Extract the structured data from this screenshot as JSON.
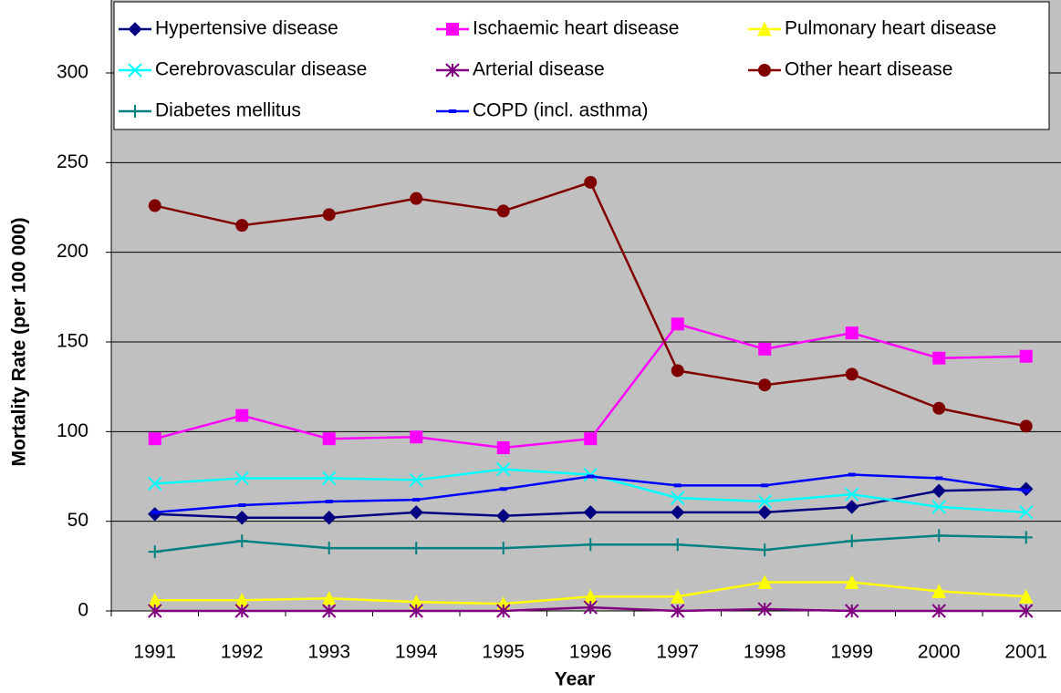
{
  "chart_data": {
    "type": "line",
    "x_label": "Year",
    "y_label": "Mortality Rate (per 100 000)",
    "categories": [
      "1991",
      "1992",
      "1993",
      "1994",
      "1995",
      "1996",
      "1997",
      "1998",
      "1999",
      "2000",
      "2001"
    ],
    "ylim": [
      0,
      300
    ],
    "yticks": [
      0,
      50,
      100,
      150,
      200,
      250,
      300
    ],
    "grid": true,
    "series": [
      {
        "name": "Hypertensive disease",
        "color": "#000080",
        "marker": "diamond",
        "values": [
          54,
          52,
          52,
          55,
          53,
          55,
          55,
          55,
          58,
          67,
          68
        ]
      },
      {
        "name": "Ischaemic heart disease",
        "color": "#ff00ff",
        "marker": "square",
        "values": [
          96,
          109,
          96,
          97,
          91,
          96,
          160,
          146,
          155,
          141,
          142
        ]
      },
      {
        "name": "Pulmonary heart disease",
        "color": "#ffff00",
        "marker": "triangle",
        "values": [
          6,
          6,
          7,
          5,
          4,
          8,
          8,
          16,
          16,
          11,
          8
        ]
      },
      {
        "name": "Cerebrovascular disease",
        "color": "#00ffff",
        "marker": "x",
        "values": [
          71,
          74,
          74,
          73,
          79,
          76,
          63,
          61,
          65,
          58,
          55
        ]
      },
      {
        "name": "Arterial disease",
        "color": "#800080",
        "marker": "star",
        "values": [
          0,
          0,
          0,
          0,
          0,
          2,
          0,
          1,
          0,
          0,
          0
        ]
      },
      {
        "name": "Other heart disease",
        "color": "#800000",
        "marker": "circle",
        "values": [
          226,
          215,
          221,
          230,
          223,
          239,
          134,
          126,
          132,
          113,
          103
        ]
      },
      {
        "name": "Diabetes mellitus",
        "color": "#008080",
        "marker": "plus",
        "values": [
          33,
          39,
          35,
          35,
          35,
          37,
          37,
          34,
          39,
          42,
          41
        ]
      },
      {
        "name": "COPD (incl. asthma)",
        "color": "#0000ff",
        "marker": "dash",
        "values": [
          55,
          59,
          61,
          62,
          68,
          75,
          70,
          70,
          76,
          74,
          67
        ]
      }
    ]
  }
}
